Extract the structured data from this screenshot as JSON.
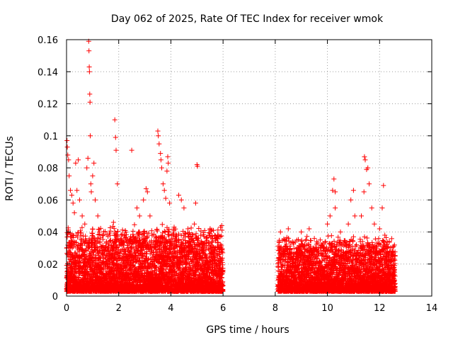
{
  "chart_data": {
    "type": "scatter",
    "title": "Day 062 of 2025, Rate Of TEC Index for receiver wmok",
    "xlabel": "GPS time / hours",
    "ylabel": "ROTI / TECUs",
    "xlim": [
      0,
      14
    ],
    "ylim": [
      0,
      0.16
    ],
    "x_ticks": [
      0,
      2,
      4,
      6,
      8,
      10,
      12,
      14
    ],
    "x_tick_labels": [
      "0",
      "2",
      "4",
      "6",
      "8",
      "10",
      "12",
      "14"
    ],
    "y_ticks": [
      0,
      0.02,
      0.04,
      0.06,
      0.08,
      0.1,
      0.12,
      0.14,
      0.16
    ],
    "y_tick_labels": [
      "0",
      "0.02",
      "0.04",
      "0.06",
      "0.08",
      "0.1",
      "0.12",
      "0.14",
      "0.16"
    ],
    "grid": true,
    "marker": "+",
    "color": "#ff0000",
    "series": [
      {
        "name": "ROTI",
        "segments": [
          {
            "x_start": 0.0,
            "x_end": 6.0,
            "typical_max": 0.03,
            "floor": 0.003
          },
          {
            "x_start": 8.1,
            "x_end": 12.6,
            "typical_max": 0.025,
            "floor": 0.003
          }
        ],
        "outliers": [
          [
            0.02,
            0.097
          ],
          [
            0.03,
            0.093
          ],
          [
            0.05,
            0.088
          ],
          [
            0.08,
            0.085
          ],
          [
            0.1,
            0.075
          ],
          [
            0.15,
            0.066
          ],
          [
            0.2,
            0.063
          ],
          [
            0.25,
            0.058
          ],
          [
            0.3,
            0.052
          ],
          [
            0.35,
            0.083
          ],
          [
            0.4,
            0.066
          ],
          [
            0.45,
            0.085
          ],
          [
            0.5,
            0.06
          ],
          [
            0.6,
            0.05
          ],
          [
            0.7,
            0.045
          ],
          [
            0.78,
            0.08
          ],
          [
            0.82,
            0.086
          ],
          [
            0.85,
            0.159
          ],
          [
            0.86,
            0.153
          ],
          [
            0.87,
            0.143
          ],
          [
            0.88,
            0.14
          ],
          [
            0.89,
            0.126
          ],
          [
            0.9,
            0.121
          ],
          [
            0.91,
            0.1
          ],
          [
            0.93,
            0.07
          ],
          [
            0.95,
            0.065
          ],
          [
            1.0,
            0.075
          ],
          [
            1.05,
            0.083
          ],
          [
            1.1,
            0.06
          ],
          [
            1.2,
            0.05
          ],
          [
            1.85,
            0.11
          ],
          [
            1.88,
            0.099
          ],
          [
            1.9,
            0.091
          ],
          [
            1.95,
            0.07
          ],
          [
            1.8,
            0.046
          ],
          [
            2.5,
            0.091
          ],
          [
            2.7,
            0.055
          ],
          [
            2.8,
            0.05
          ],
          [
            2.95,
            0.06
          ],
          [
            3.05,
            0.067
          ],
          [
            3.1,
            0.065
          ],
          [
            3.2,
            0.05
          ],
          [
            3.5,
            0.103
          ],
          [
            3.52,
            0.1
          ],
          [
            3.55,
            0.095
          ],
          [
            3.6,
            0.089
          ],
          [
            3.62,
            0.085
          ],
          [
            3.65,
            0.08
          ],
          [
            3.7,
            0.07
          ],
          [
            3.75,
            0.066
          ],
          [
            3.8,
            0.061
          ],
          [
            3.85,
            0.078
          ],
          [
            3.88,
            0.087
          ],
          [
            3.9,
            0.083
          ],
          [
            3.95,
            0.058
          ],
          [
            4.3,
            0.063
          ],
          [
            4.4,
            0.06
          ],
          [
            4.5,
            0.055
          ],
          [
            4.9,
            0.045
          ],
          [
            4.95,
            0.058
          ],
          [
            5.0,
            0.082
          ],
          [
            5.02,
            0.081
          ],
          [
            5.2,
            0.03
          ],
          [
            5.9,
            0.043
          ],
          [
            5.95,
            0.044
          ],
          [
            8.2,
            0.04
          ],
          [
            8.5,
            0.042
          ],
          [
            9.0,
            0.04
          ],
          [
            9.3,
            0.042
          ],
          [
            9.5,
            0.036
          ],
          [
            10.0,
            0.045
          ],
          [
            10.1,
            0.05
          ],
          [
            10.2,
            0.066
          ],
          [
            10.25,
            0.073
          ],
          [
            10.3,
            0.065
          ],
          [
            10.3,
            0.055
          ],
          [
            10.5,
            0.04
          ],
          [
            10.8,
            0.045
          ],
          [
            10.9,
            0.06
          ],
          [
            11.0,
            0.066
          ],
          [
            11.05,
            0.05
          ],
          [
            11.3,
            0.05
          ],
          [
            11.4,
            0.065
          ],
          [
            11.42,
            0.087
          ],
          [
            11.45,
            0.085
          ],
          [
            11.5,
            0.079
          ],
          [
            11.55,
            0.08
          ],
          [
            11.6,
            0.07
          ],
          [
            11.7,
            0.055
          ],
          [
            11.8,
            0.045
          ],
          [
            12.0,
            0.042
          ],
          [
            12.1,
            0.055
          ],
          [
            12.15,
            0.069
          ],
          [
            12.2,
            0.038
          ],
          [
            12.3,
            0.03
          ]
        ]
      }
    ]
  }
}
